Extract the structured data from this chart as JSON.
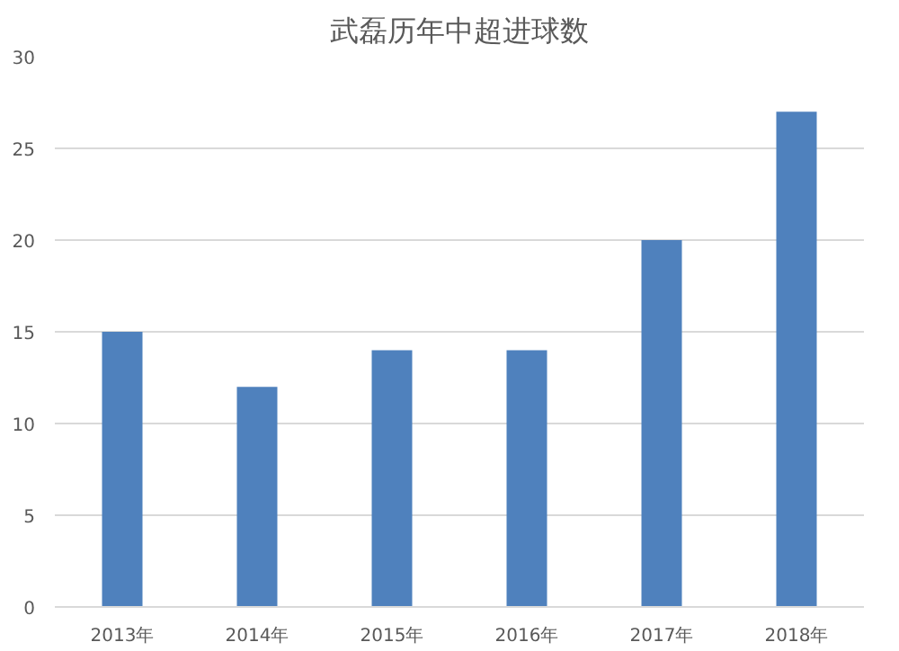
{
  "chart_data": {
    "type": "bar",
    "title": "武磊历年中超进球数",
    "categories": [
      "2013年",
      "2014年",
      "2015年",
      "2016年",
      "2017年",
      "2018年"
    ],
    "values": [
      15,
      12,
      14,
      14,
      20,
      27
    ],
    "color": "#4f81bd",
    "ylim": [
      0,
      30
    ],
    "yticks": [
      0,
      5,
      10,
      15,
      20,
      25,
      30
    ],
    "grid": "y"
  }
}
